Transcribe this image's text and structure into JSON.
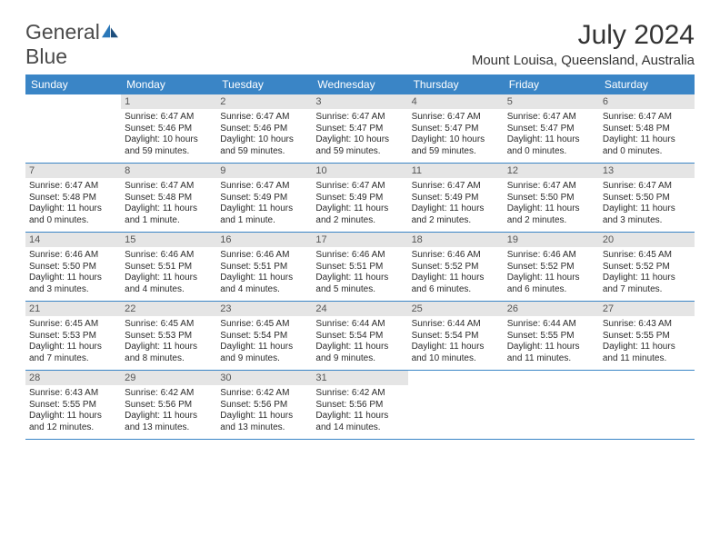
{
  "colors": {
    "header_bg": "#3a85c6",
    "header_fg": "#ffffff",
    "daynum_bg": "#e5e5e5",
    "daynum_fg": "#555555",
    "rule": "#3a85c6",
    "body_text": "#2b2b2b",
    "title_text": "#333333",
    "logo_gray": "#4a4a4a",
    "logo_blue": "#2a77b8"
  },
  "logo": {
    "line1": "General",
    "line2": "Blue"
  },
  "title": "July 2024",
  "location": "Mount Louisa, Queensland, Australia",
  "weekdays": [
    "Sunday",
    "Monday",
    "Tuesday",
    "Wednesday",
    "Thursday",
    "Friday",
    "Saturday"
  ],
  "first_weekday_index": 1,
  "days": [
    {
      "n": 1,
      "sunrise": "6:47 AM",
      "sunset": "5:46 PM",
      "daylight": "10 hours and 59 minutes."
    },
    {
      "n": 2,
      "sunrise": "6:47 AM",
      "sunset": "5:46 PM",
      "daylight": "10 hours and 59 minutes."
    },
    {
      "n": 3,
      "sunrise": "6:47 AM",
      "sunset": "5:47 PM",
      "daylight": "10 hours and 59 minutes."
    },
    {
      "n": 4,
      "sunrise": "6:47 AM",
      "sunset": "5:47 PM",
      "daylight": "10 hours and 59 minutes."
    },
    {
      "n": 5,
      "sunrise": "6:47 AM",
      "sunset": "5:47 PM",
      "daylight": "11 hours and 0 minutes."
    },
    {
      "n": 6,
      "sunrise": "6:47 AM",
      "sunset": "5:48 PM",
      "daylight": "11 hours and 0 minutes."
    },
    {
      "n": 7,
      "sunrise": "6:47 AM",
      "sunset": "5:48 PM",
      "daylight": "11 hours and 0 minutes."
    },
    {
      "n": 8,
      "sunrise": "6:47 AM",
      "sunset": "5:48 PM",
      "daylight": "11 hours and 1 minute."
    },
    {
      "n": 9,
      "sunrise": "6:47 AM",
      "sunset": "5:49 PM",
      "daylight": "11 hours and 1 minute."
    },
    {
      "n": 10,
      "sunrise": "6:47 AM",
      "sunset": "5:49 PM",
      "daylight": "11 hours and 2 minutes."
    },
    {
      "n": 11,
      "sunrise": "6:47 AM",
      "sunset": "5:49 PM",
      "daylight": "11 hours and 2 minutes."
    },
    {
      "n": 12,
      "sunrise": "6:47 AM",
      "sunset": "5:50 PM",
      "daylight": "11 hours and 2 minutes."
    },
    {
      "n": 13,
      "sunrise": "6:47 AM",
      "sunset": "5:50 PM",
      "daylight": "11 hours and 3 minutes."
    },
    {
      "n": 14,
      "sunrise": "6:46 AM",
      "sunset": "5:50 PM",
      "daylight": "11 hours and 3 minutes."
    },
    {
      "n": 15,
      "sunrise": "6:46 AM",
      "sunset": "5:51 PM",
      "daylight": "11 hours and 4 minutes."
    },
    {
      "n": 16,
      "sunrise": "6:46 AM",
      "sunset": "5:51 PM",
      "daylight": "11 hours and 4 minutes."
    },
    {
      "n": 17,
      "sunrise": "6:46 AM",
      "sunset": "5:51 PM",
      "daylight": "11 hours and 5 minutes."
    },
    {
      "n": 18,
      "sunrise": "6:46 AM",
      "sunset": "5:52 PM",
      "daylight": "11 hours and 6 minutes."
    },
    {
      "n": 19,
      "sunrise": "6:46 AM",
      "sunset": "5:52 PM",
      "daylight": "11 hours and 6 minutes."
    },
    {
      "n": 20,
      "sunrise": "6:45 AM",
      "sunset": "5:52 PM",
      "daylight": "11 hours and 7 minutes."
    },
    {
      "n": 21,
      "sunrise": "6:45 AM",
      "sunset": "5:53 PM",
      "daylight": "11 hours and 7 minutes."
    },
    {
      "n": 22,
      "sunrise": "6:45 AM",
      "sunset": "5:53 PM",
      "daylight": "11 hours and 8 minutes."
    },
    {
      "n": 23,
      "sunrise": "6:45 AM",
      "sunset": "5:54 PM",
      "daylight": "11 hours and 9 minutes."
    },
    {
      "n": 24,
      "sunrise": "6:44 AM",
      "sunset": "5:54 PM",
      "daylight": "11 hours and 9 minutes."
    },
    {
      "n": 25,
      "sunrise": "6:44 AM",
      "sunset": "5:54 PM",
      "daylight": "11 hours and 10 minutes."
    },
    {
      "n": 26,
      "sunrise": "6:44 AM",
      "sunset": "5:55 PM",
      "daylight": "11 hours and 11 minutes."
    },
    {
      "n": 27,
      "sunrise": "6:43 AM",
      "sunset": "5:55 PM",
      "daylight": "11 hours and 11 minutes."
    },
    {
      "n": 28,
      "sunrise": "6:43 AM",
      "sunset": "5:55 PM",
      "daylight": "11 hours and 12 minutes."
    },
    {
      "n": 29,
      "sunrise": "6:42 AM",
      "sunset": "5:56 PM",
      "daylight": "11 hours and 13 minutes."
    },
    {
      "n": 30,
      "sunrise": "6:42 AM",
      "sunset": "5:56 PM",
      "daylight": "11 hours and 13 minutes."
    },
    {
      "n": 31,
      "sunrise": "6:42 AM",
      "sunset": "5:56 PM",
      "daylight": "11 hours and 14 minutes."
    }
  ],
  "labels": {
    "sunrise": "Sunrise:",
    "sunset": "Sunset:",
    "daylight": "Daylight:"
  }
}
